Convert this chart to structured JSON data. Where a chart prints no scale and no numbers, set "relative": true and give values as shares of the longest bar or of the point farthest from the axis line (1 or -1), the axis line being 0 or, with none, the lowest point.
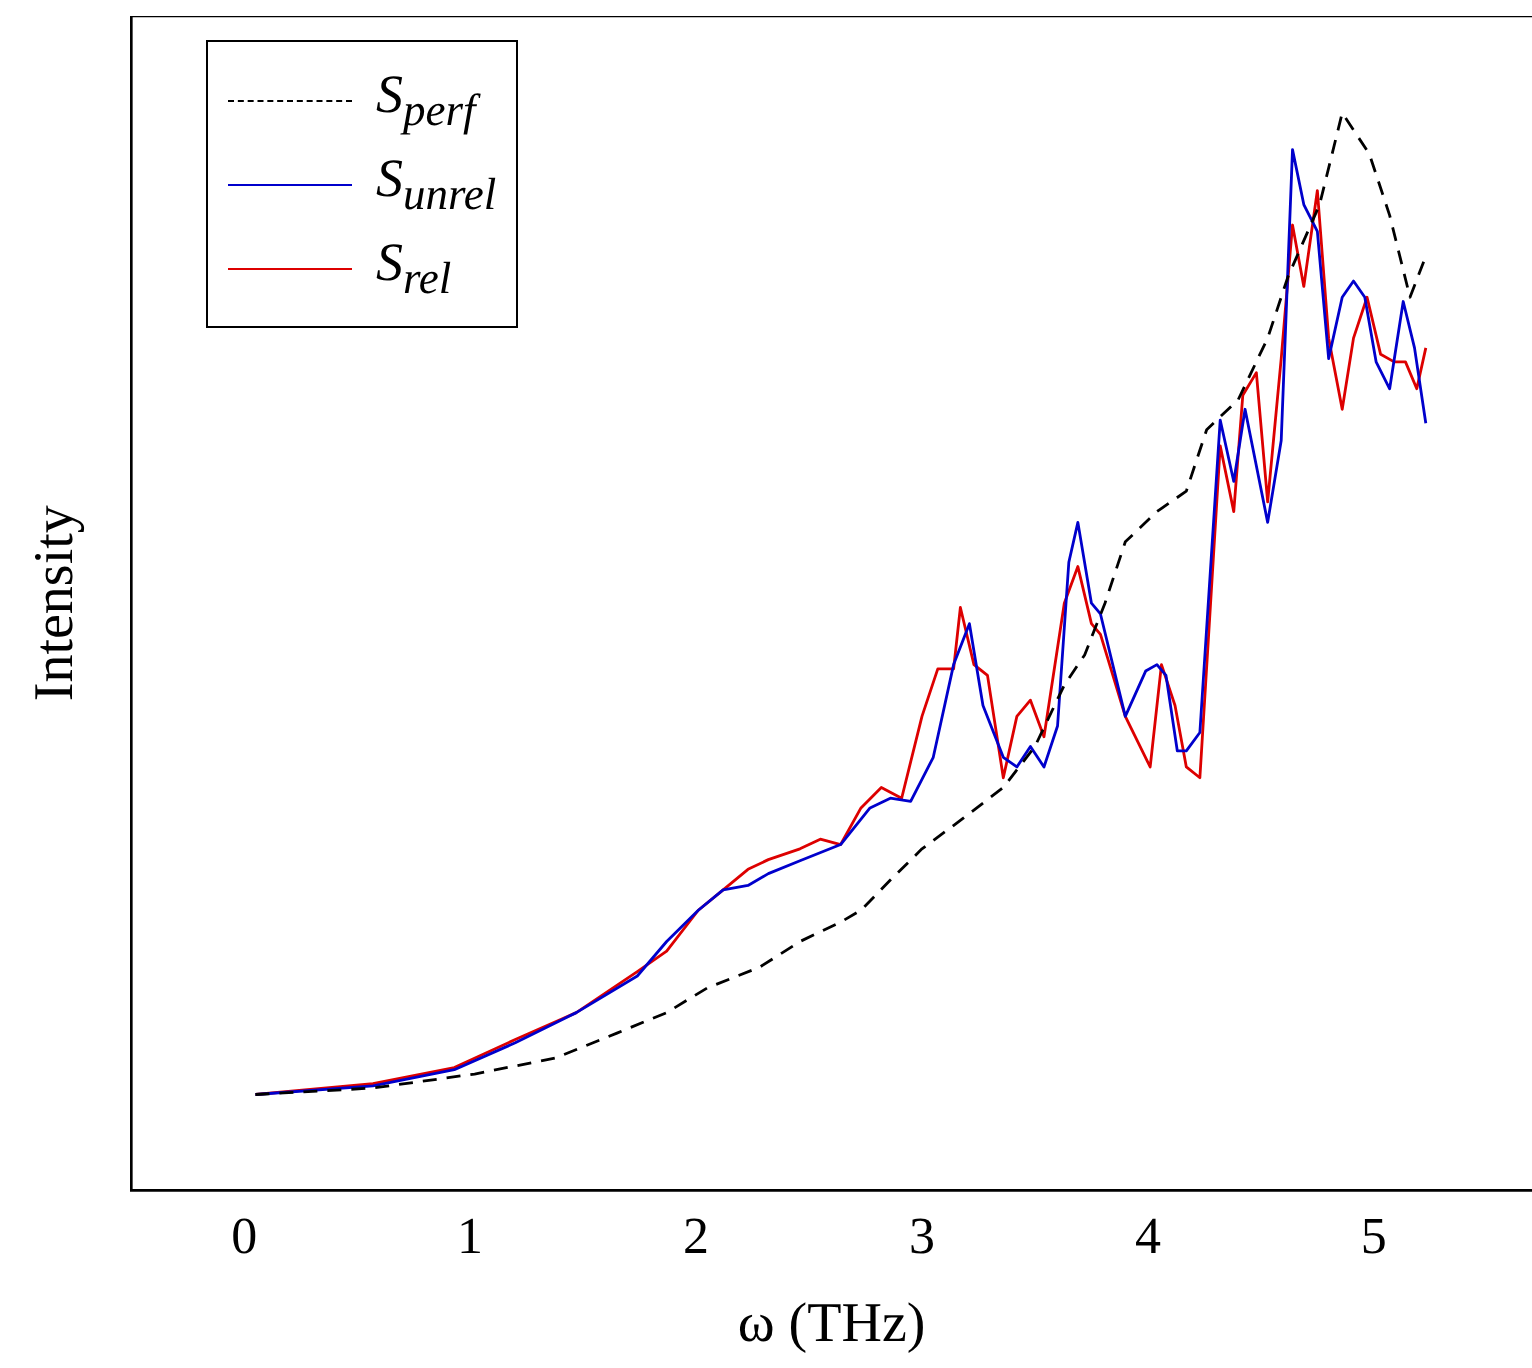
{
  "chart_data": {
    "type": "line",
    "xlabel": "ω (THz)",
    "ylabel": "Intensity",
    "relative": true,
    "xlim": [
      -0.5,
      5.7
    ],
    "xticks": [
      0,
      1,
      2,
      3,
      4,
      5
    ],
    "grid": false,
    "legend": "top left",
    "marker": "none",
    "series": [
      {
        "name": "S$_{perf}$",
        "color": "#000000",
        "line_style": "dashed",
        "x": [
          0.05,
          0.57,
          1.02,
          1.38,
          1.65,
          1.87,
          2.05,
          2.28,
          2.46,
          2.64,
          2.73,
          2.86,
          3.0,
          3.18,
          3.36,
          3.5,
          3.63,
          3.72,
          3.81,
          3.9,
          4.04,
          4.17,
          4.26,
          4.4,
          4.53,
          4.62,
          4.76,
          4.86,
          4.98,
          5.07,
          5.16,
          5.23
        ],
        "values": [
          0.089,
          0.095,
          0.108,
          0.123,
          0.146,
          0.165,
          0.188,
          0.207,
          0.231,
          0.249,
          0.26,
          0.288,
          0.317,
          0.345,
          0.374,
          0.412,
          0.469,
          0.497,
          0.545,
          0.602,
          0.63,
          0.649,
          0.706,
          0.734,
          0.791,
          0.848,
          0.915,
          1,
          0.962,
          0.905,
          0.829,
          0.867
        ]
      },
      {
        "name": "S$_{unrel}$",
        "color": "#0000cc",
        "line_style": "solid",
        "x": [
          0.05,
          0.57,
          0.93,
          1.2,
          1.47,
          1.74,
          1.87,
          2.01,
          2.12,
          2.23,
          2.32,
          2.46,
          2.64,
          2.77,
          2.86,
          2.95,
          3.05,
          3.14,
          3.21,
          3.27,
          3.36,
          3.42,
          3.48,
          3.54,
          3.6,
          3.65,
          3.69,
          3.75,
          3.79,
          3.9,
          3.99,
          4.04,
          4.08,
          4.13,
          4.17,
          4.23,
          4.32,
          4.38,
          4.43,
          4.53,
          4.59,
          4.64,
          4.69,
          4.75,
          4.8,
          4.86,
          4.91,
          4.96,
          5.01,
          5.07,
          5.13,
          5.18,
          5.23
        ],
        "values": [
          0.089,
          0.097,
          0.112,
          0.137,
          0.165,
          0.199,
          0.231,
          0.26,
          0.279,
          0.283,
          0.294,
          0.306,
          0.321,
          0.355,
          0.364,
          0.361,
          0.402,
          0.488,
          0.526,
          0.45,
          0.402,
          0.393,
          0.412,
          0.393,
          0.431,
          0.583,
          0.62,
          0.545,
          0.535,
          0.44,
          0.482,
          0.488,
          0.478,
          0.408,
          0.408,
          0.425,
          0.715,
          0.658,
          0.725,
          0.62,
          0.696,
          0.966,
          0.915,
          0.89,
          0.772,
          0.829,
          0.844,
          0.829,
          0.769,
          0.744,
          0.825,
          0.782,
          0.712
        ]
      },
      {
        "name": "S$_{rel}$",
        "color": "#dd0000",
        "line_style": "solid",
        "x": [
          0.05,
          0.57,
          0.93,
          1.2,
          1.47,
          1.74,
          1.87,
          2.01,
          2.12,
          2.23,
          2.32,
          2.46,
          2.55,
          2.64,
          2.73,
          2.82,
          2.91,
          3.0,
          3.07,
          3.14,
          3.17,
          3.23,
          3.29,
          3.36,
          3.42,
          3.48,
          3.54,
          3.63,
          3.69,
          3.75,
          3.79,
          3.9,
          4.01,
          4.06,
          4.12,
          4.17,
          4.23,
          4.32,
          4.38,
          4.42,
          4.48,
          4.53,
          4.59,
          4.64,
          4.69,
          4.75,
          4.8,
          4.86,
          4.91,
          4.97,
          5.03,
          5.09,
          5.14,
          5.19,
          5.23
        ],
        "values": [
          0.089,
          0.099,
          0.114,
          0.14,
          0.165,
          0.203,
          0.222,
          0.26,
          0.279,
          0.298,
          0.307,
          0.317,
          0.326,
          0.321,
          0.355,
          0.374,
          0.364,
          0.44,
          0.484,
          0.484,
          0.541,
          0.488,
          0.478,
          0.383,
          0.44,
          0.455,
          0.421,
          0.545,
          0.579,
          0.526,
          0.516,
          0.44,
          0.393,
          0.488,
          0.45,
          0.393,
          0.383,
          0.691,
          0.63,
          0.738,
          0.759,
          0.639,
          0.772,
          0.896,
          0.839,
          0.928,
          0.791,
          0.725,
          0.791,
          0.829,
          0.776,
          0.769,
          0.769,
          0.744,
          0.782
        ]
      }
    ]
  }
}
